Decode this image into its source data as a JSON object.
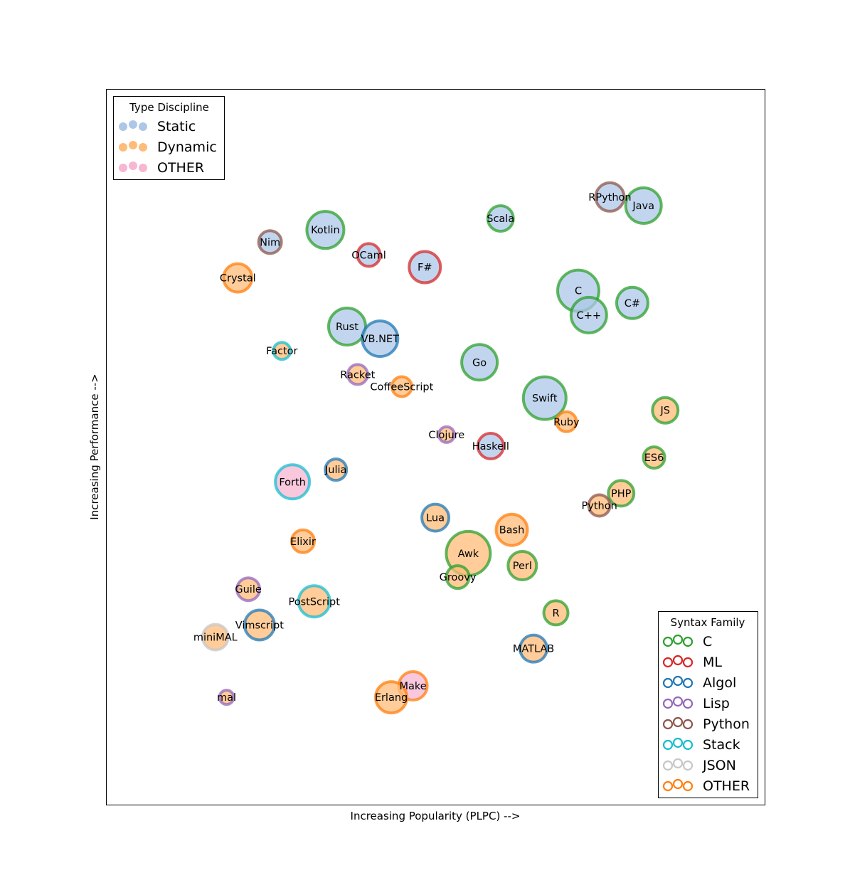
{
  "chart_data": {
    "type": "scatter",
    "xlabel": "Increasing Popularity (PLPC) -->",
    "ylabel": "Increasing Performance -->",
    "xlim": [
      0,
      100
    ],
    "ylim": [
      0,
      100
    ],
    "grid": false,
    "type_legend": {
      "title": "Type Discipline",
      "placement": "top-left",
      "entries": [
        {
          "name": "Static",
          "color": "#aec7e8"
        },
        {
          "name": "Dynamic",
          "color": "#ffbb78"
        },
        {
          "name": "OTHER",
          "color": "#f7b6d2"
        }
      ]
    },
    "syntax_legend": {
      "title": "Syntax Family",
      "placement": "bottom-right",
      "entries": [
        {
          "name": "C",
          "color": "#2ca02c"
        },
        {
          "name": "ML",
          "color": "#d62728"
        },
        {
          "name": "Algol",
          "color": "#1f77b4"
        },
        {
          "name": "Lisp",
          "color": "#9467bd"
        },
        {
          "name": "Python",
          "color": "#8c564b"
        },
        {
          "name": "Stack",
          "color": "#17becf"
        },
        {
          "name": "JSON",
          "color": "#c7c7c7"
        },
        {
          "name": "OTHER",
          "color": "#ff7f0e"
        }
      ]
    },
    "points": [
      {
        "label": "RPython",
        "x": 76.4,
        "y": 85.0,
        "size": 20,
        "type": "Static",
        "syntax": "Python"
      },
      {
        "label": "Java",
        "x": 81.5,
        "y": 83.8,
        "size": 25,
        "type": "Static",
        "syntax": "C"
      },
      {
        "label": "Scala",
        "x": 59.8,
        "y": 82.0,
        "size": 18,
        "type": "Static",
        "syntax": "C"
      },
      {
        "label": "Kotlin",
        "x": 33.2,
        "y": 80.4,
        "size": 26,
        "type": "Static",
        "syntax": "C"
      },
      {
        "label": "Nim",
        "x": 24.8,
        "y": 78.7,
        "size": 16,
        "type": "Static",
        "syntax": "Python"
      },
      {
        "label": "OCaml",
        "x": 39.8,
        "y": 76.9,
        "size": 16,
        "type": "Static",
        "syntax": "ML"
      },
      {
        "label": "F#",
        "x": 48.3,
        "y": 75.2,
        "size": 22,
        "type": "Static",
        "syntax": "ML"
      },
      {
        "label": "Crystal",
        "x": 19.9,
        "y": 73.7,
        "size": 20,
        "type": "Dynamic",
        "syntax": "OTHER"
      },
      {
        "label": "C",
        "x": 71.6,
        "y": 71.9,
        "size": 29,
        "type": "Static",
        "syntax": "C"
      },
      {
        "label": "C#",
        "x": 79.8,
        "y": 70.2,
        "size": 22,
        "type": "Static",
        "syntax": "C"
      },
      {
        "label": "C++",
        "x": 73.2,
        "y": 68.5,
        "size": 25,
        "type": "Static",
        "syntax": "C"
      },
      {
        "label": "Rust",
        "x": 36.5,
        "y": 66.9,
        "size": 26,
        "type": "Static",
        "syntax": "C"
      },
      {
        "label": "VB.NET",
        "x": 41.5,
        "y": 65.2,
        "size": 25,
        "type": "Static",
        "syntax": "Algol"
      },
      {
        "label": "Factor",
        "x": 26.6,
        "y": 63.5,
        "size": 12,
        "type": "Dynamic",
        "syntax": "Stack"
      },
      {
        "label": "Go",
        "x": 56.6,
        "y": 61.9,
        "size": 25,
        "type": "Static",
        "syntax": "C"
      },
      {
        "label": "Racket",
        "x": 38.1,
        "y": 60.2,
        "size": 14,
        "type": "Dynamic",
        "syntax": "Lisp"
      },
      {
        "label": "CoffeeScript",
        "x": 44.8,
        "y": 58.5,
        "size": 14,
        "type": "Dynamic",
        "syntax": "OTHER"
      },
      {
        "label": "Swift",
        "x": 66.5,
        "y": 56.9,
        "size": 30,
        "type": "Static",
        "syntax": "C"
      },
      {
        "label": "JS",
        "x": 84.8,
        "y": 55.2,
        "size": 18,
        "type": "Dynamic",
        "syntax": "C"
      },
      {
        "label": "Ruby",
        "x": 69.8,
        "y": 53.6,
        "size": 14,
        "type": "Dynamic",
        "syntax": "OTHER"
      },
      {
        "label": "Clojure",
        "x": 51.6,
        "y": 51.8,
        "size": 11,
        "type": "Dynamic",
        "syntax": "Lisp"
      },
      {
        "label": "Haskell",
        "x": 58.3,
        "y": 50.2,
        "size": 18,
        "type": "Static",
        "syntax": "ML"
      },
      {
        "label": "ES6",
        "x": 83.1,
        "y": 48.6,
        "size": 15,
        "type": "Dynamic",
        "syntax": "C"
      },
      {
        "label": "Julia",
        "x": 34.8,
        "y": 46.9,
        "size": 15,
        "type": "Dynamic",
        "syntax": "Algol"
      },
      {
        "label": "Forth",
        "x": 28.2,
        "y": 45.2,
        "size": 24,
        "type": "OTHER",
        "syntax": "Stack"
      },
      {
        "label": "PHP",
        "x": 78.1,
        "y": 43.6,
        "size": 18,
        "type": "Dynamic",
        "syntax": "C"
      },
      {
        "label": "Python",
        "x": 74.8,
        "y": 41.9,
        "size": 15,
        "type": "Dynamic",
        "syntax": "Python"
      },
      {
        "label": "Lua",
        "x": 49.9,
        "y": 40.2,
        "size": 19,
        "type": "Dynamic",
        "syntax": "Algol"
      },
      {
        "label": "Bash",
        "x": 61.5,
        "y": 38.5,
        "size": 22,
        "type": "Dynamic",
        "syntax": "OTHER"
      },
      {
        "label": "Elixir",
        "x": 29.8,
        "y": 36.9,
        "size": 16,
        "type": "Dynamic",
        "syntax": "OTHER"
      },
      {
        "label": "Awk",
        "x": 54.9,
        "y": 35.2,
        "size": 31,
        "type": "Dynamic",
        "syntax": "C"
      },
      {
        "label": "Perl",
        "x": 63.1,
        "y": 33.5,
        "size": 20,
        "type": "Dynamic",
        "syntax": "C"
      },
      {
        "label": "Groovy",
        "x": 53.3,
        "y": 31.9,
        "size": 16,
        "type": "Dynamic",
        "syntax": "C"
      },
      {
        "label": "Guile",
        "x": 21.5,
        "y": 30.2,
        "size": 16,
        "type": "Dynamic",
        "syntax": "Lisp"
      },
      {
        "label": "PostScript",
        "x": 31.5,
        "y": 28.5,
        "size": 22,
        "type": "Dynamic",
        "syntax": "Stack"
      },
      {
        "label": "R",
        "x": 68.2,
        "y": 26.9,
        "size": 17,
        "type": "Dynamic",
        "syntax": "C"
      },
      {
        "label": "Vimscript",
        "x": 23.2,
        "y": 25.2,
        "size": 21,
        "type": "Dynamic",
        "syntax": "Algol"
      },
      {
        "label": "miniMAL",
        "x": 16.5,
        "y": 23.5,
        "size": 18,
        "type": "Dynamic",
        "syntax": "JSON"
      },
      {
        "label": "MATLAB",
        "x": 64.8,
        "y": 21.9,
        "size": 19,
        "type": "Dynamic",
        "syntax": "Algol"
      },
      {
        "label": "Make",
        "x": 46.5,
        "y": 16.7,
        "size": 20,
        "type": "OTHER",
        "syntax": "OTHER"
      },
      {
        "label": "Erlang",
        "x": 43.2,
        "y": 15.1,
        "size": 22,
        "type": "Dynamic",
        "syntax": "OTHER"
      },
      {
        "label": "mal",
        "x": 18.2,
        "y": 15.1,
        "size": 10,
        "type": "Dynamic",
        "syntax": "Lisp"
      }
    ]
  }
}
